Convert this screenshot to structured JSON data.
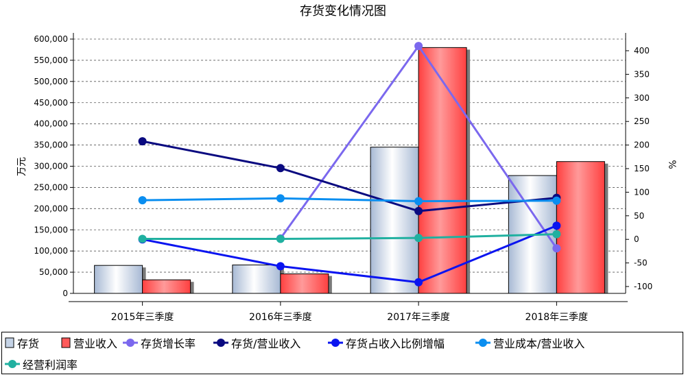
{
  "chart_data": {
    "type": "bar",
    "title": "存货变化情况图",
    "categories": [
      "2015年三季度",
      "2016年三季度",
      "2017年三季度",
      "2018年三季度"
    ],
    "ylabel_left": "万元",
    "ylabel_right": "%",
    "ylim_left": [
      0,
      600000
    ],
    "yticks_left": [
      "0",
      "50,000",
      "100,000",
      "150,000",
      "200,000",
      "250,000",
      "300,000",
      "350,000",
      "400,000",
      "450,000",
      "500,000",
      "550,000",
      "600,000"
    ],
    "ylim_right": [
      -100,
      400
    ],
    "yticks_right": [
      "-100",
      "-50",
      "0",
      "50",
      "100",
      "150",
      "200",
      "250",
      "300",
      "350",
      "400"
    ],
    "grid": true,
    "legend_position": "bottom",
    "series": [
      {
        "name": "存货",
        "kind": "bar",
        "axis": "left",
        "color": "#c5d3e6",
        "values": [
          66000,
          67000,
          345000,
          278000
        ]
      },
      {
        "name": "营业收入",
        "kind": "bar",
        "axis": "left",
        "color": "#ff5a5a",
        "values": [
          32000,
          46000,
          580000,
          311000
        ]
      },
      {
        "name": "存货增长率",
        "kind": "line",
        "axis": "right",
        "color": "#7b68ee",
        "values": [
          null,
          2,
          410,
          -19
        ]
      },
      {
        "name": "存货/营业收入",
        "kind": "line",
        "axis": "right",
        "color": "#0a0a80",
        "values": [
          208,
          151,
          60,
          88
        ]
      },
      {
        "name": "存货占收入比例增幅",
        "kind": "line",
        "axis": "right",
        "color": "#0a14f0",
        "values": [
          0,
          -57,
          -91,
          29
        ]
      },
      {
        "name": "营业成本/营业收入",
        "kind": "line",
        "axis": "right",
        "color": "#0a8ef0",
        "values": [
          83,
          87,
          81,
          82
        ]
      },
      {
        "name": "经营利润率",
        "kind": "line",
        "axis": "right",
        "color": "#20b0a0",
        "values": [
          1,
          1,
          3,
          11
        ]
      }
    ]
  }
}
